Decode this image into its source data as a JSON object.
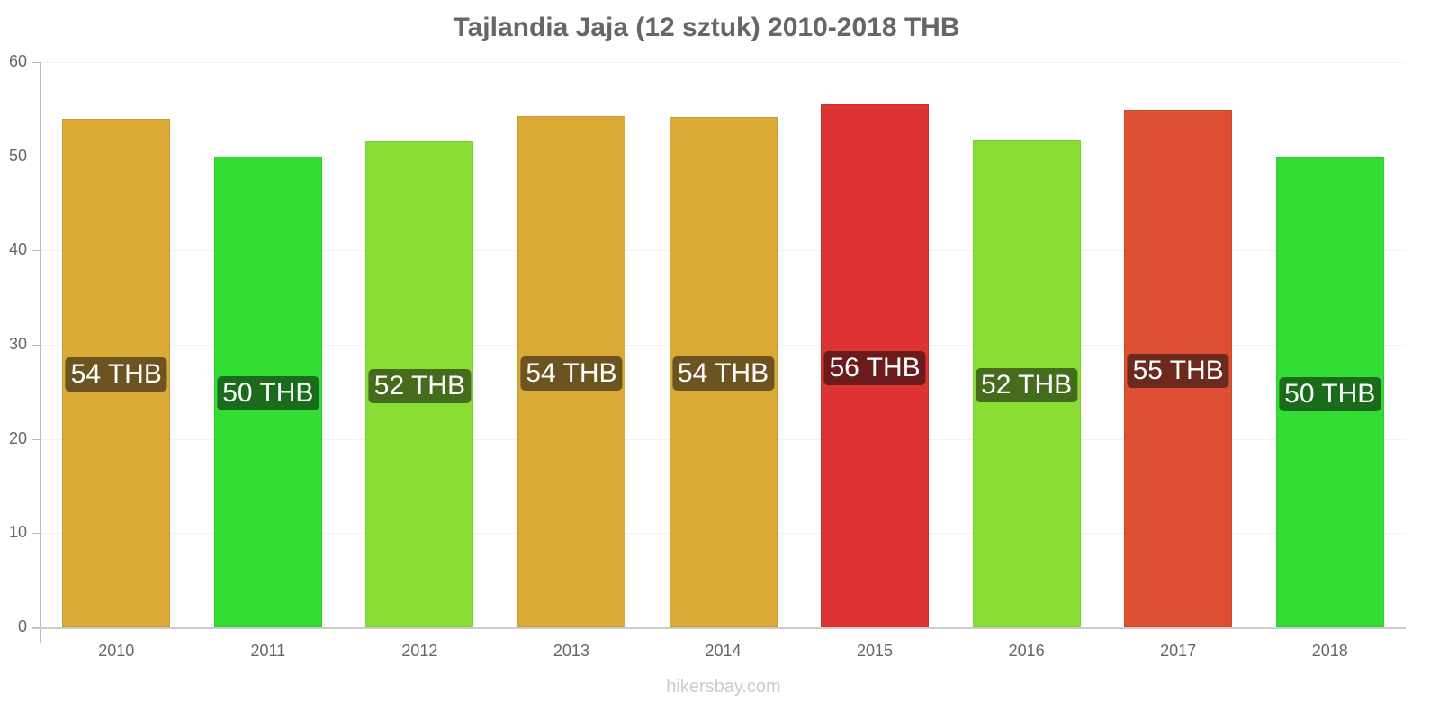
{
  "chart_data": {
    "type": "bar",
    "title": "Tajlandia Jaja (12 sztuk) 2010-2018 THB",
    "xlabel": "",
    "ylabel": "",
    "ylim": [
      0,
      60
    ],
    "yticks": [
      "0",
      "10",
      "20",
      "30",
      "40",
      "50",
      "60"
    ],
    "grid": true,
    "legend": null,
    "categories": [
      "2010",
      "2011",
      "2012",
      "2013",
      "2014",
      "2015",
      "2016",
      "2017",
      "2018"
    ],
    "values": [
      54.0,
      50.0,
      51.6,
      54.3,
      54.2,
      55.5,
      51.7,
      54.9,
      49.9
    ],
    "data_labels": [
      "54 THB",
      "50 THB",
      "52 THB",
      "54 THB",
      "54 THB",
      "56 THB",
      "52 THB",
      "55 THB",
      "50 THB"
    ],
    "bar_colors": [
      "#dba935",
      "#33dd33",
      "#8ade33",
      "#dba935",
      "#dba935",
      "#dd3333",
      "#8ade33",
      "#dd5033",
      "#33dd33"
    ],
    "label_bg_colors": [
      "#6b5420",
      "#1b6b1d",
      "#456b1d",
      "#6b5420",
      "#6b5420",
      "#6b1b1b",
      "#456b1d",
      "#6b2a1b",
      "#1b6b1d"
    ]
  },
  "watermark": "hikersbay.com"
}
